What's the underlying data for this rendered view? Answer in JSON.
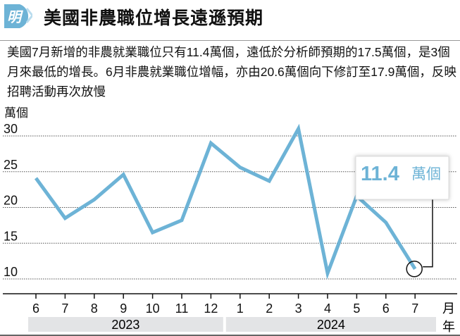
{
  "logo": {
    "text": "明",
    "color": "#6db3d6"
  },
  "title": "美國非農職位增長遠遜預期",
  "lead": "美國7月新增的非農就業職位只有11.4萬個，遠低於分析師預期的17.5萬個，是3個月來最低的增長。6月非農就業職位增幅，亦由20.6萬個向下修訂至17.9萬個，反映招聘活動再次放慢",
  "chart_data": {
    "type": "line",
    "ylabel": "萬個",
    "xlabel_month": "月",
    "xlabel_year": "年",
    "ylim": [
      10,
      30
    ],
    "yticks": [
      "30",
      "25",
      "20",
      "15",
      "10"
    ],
    "grid": "horizontal dotted",
    "categories": [
      "6",
      "7",
      "8",
      "9",
      "10",
      "11",
      "12",
      "1",
      "2",
      "3",
      "4",
      "5",
      "6",
      "7"
    ],
    "years": [
      {
        "label": "2023",
        "span": 7
      },
      {
        "label": "2024",
        "span": 7
      }
    ],
    "values": [
      24.1,
      18.5,
      21.1,
      24.6,
      16.5,
      18.2,
      29.0,
      25.6,
      23.7,
      31.0,
      10.8,
      21.6,
      17.9,
      11.4
    ],
    "line_color": "#6db3d6",
    "annotation": {
      "value": "11.4",
      "unit": "萬個"
    }
  }
}
